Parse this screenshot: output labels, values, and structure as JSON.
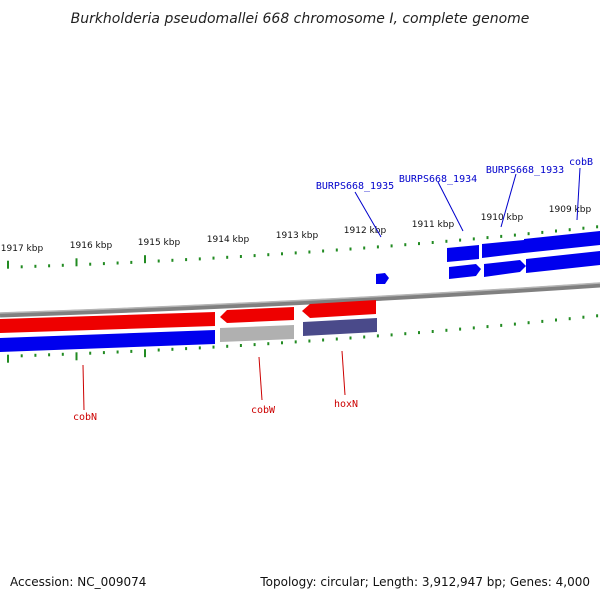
{
  "title": "Burkholderia pseudomallei 668 chromosome I, complete genome",
  "footer": {
    "accession": "Accession: NC_009074",
    "summary": "Topology: circular; Length: 3,912,947 bp; Genes: 4,000"
  },
  "ticks": [
    "1917 kbp",
    "1916 kbp",
    "1915 kbp",
    "1914 kbp",
    "1913 kbp",
    "1912 kbp",
    "1911 kbp",
    "1910 kbp",
    "1909 kbp"
  ],
  "genes_top": [
    {
      "name": "BURPS668_1935"
    },
    {
      "name": "BURPS668_1934"
    },
    {
      "name": "BURPS668_1933"
    },
    {
      "name": "cobB"
    }
  ],
  "genes_bottom": [
    {
      "name": "cobN"
    },
    {
      "name": "cobW"
    },
    {
      "name": "hoxN"
    }
  ],
  "colors": {
    "forward": "#0000ee",
    "reverse": "#ee0000",
    "tick": "#228b22",
    "backbone": "#808080",
    "grey_feature": "#b0b0b0",
    "slate_feature": "#4a4a8a",
    "label_blue": "#0000cc",
    "label_red": "#cc0000"
  }
}
